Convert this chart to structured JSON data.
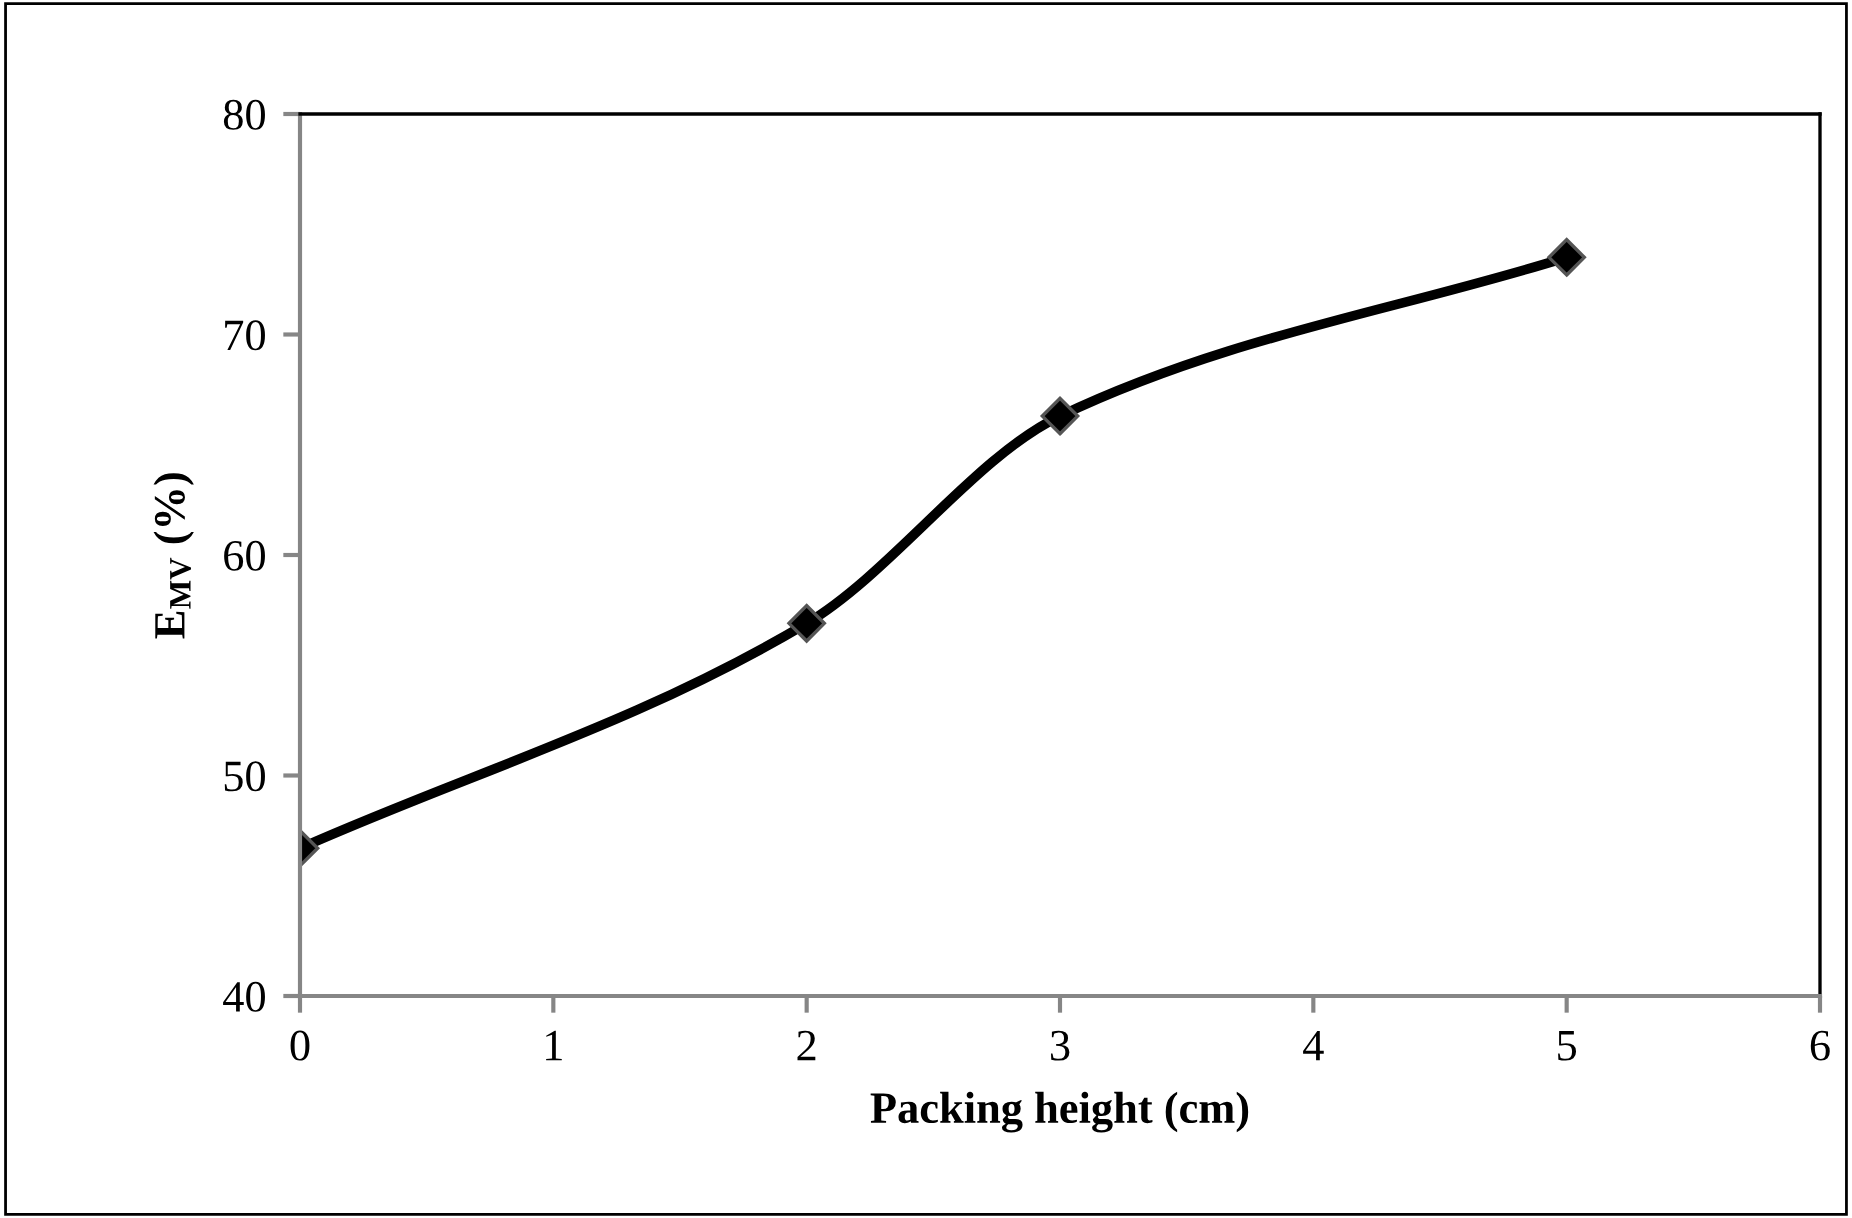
{
  "chart_data": {
    "type": "line",
    "xlabel": "Packing height (cm)",
    "ylabel": "E$_{MV}$ (%)",
    "x": [
      0,
      2,
      3,
      5
    ],
    "series": [
      {
        "color": "#000000",
        "values": [
          46.7,
          56.9,
          66.3,
          73.5
        ]
      }
    ],
    "marker": "diamond",
    "line_style": "solid",
    "grid": false,
    "xlim": [
      0,
      6
    ],
    "xticks": [
      0,
      1,
      2,
      3,
      4,
      5,
      6
    ],
    "ylim": [
      40,
      80
    ],
    "yticks": [
      40,
      50,
      60,
      70,
      80
    ]
  }
}
